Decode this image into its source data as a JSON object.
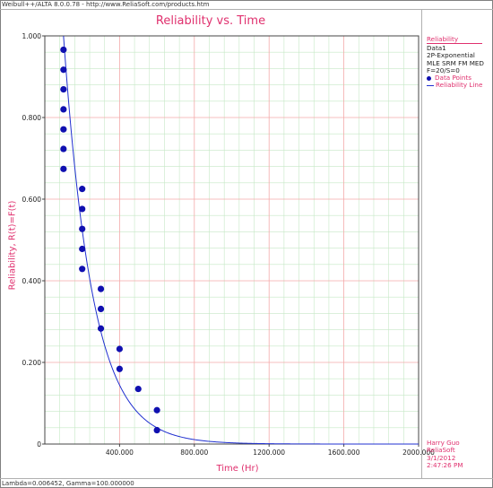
{
  "window": {
    "title": "Weibull++/ALTA 8.0.0.78 - http://www.ReliaSoft.com/products.htm",
    "footer": "Lambda=0.006452, Gamma=100.000000"
  },
  "legend": {
    "header": "Reliability",
    "dataset": "Data1",
    "model": "2P-Exponential",
    "method": "MLE SRM FM MED",
    "counts": "F=20/S=0",
    "points_label": "Data Points",
    "line_label": "Reliability Line"
  },
  "info": {
    "user": "Harry Guo",
    "company": "ReliaSoft",
    "date": "3/1/2012",
    "time": "2:47:26 PM"
  },
  "colors": {
    "title": "#e0306e",
    "grid_major": "#f4aaaa",
    "grid_minor": "#c6e8c6",
    "points": "#1010b0",
    "line": "#2030d0"
  },
  "chart_data": {
    "type": "scatter",
    "title": "Reliability vs. Time",
    "xlabel": "Time (Hr)",
    "ylabel": "Reliability, R(t)=F(t)",
    "xlim": [
      0,
      2000
    ],
    "ylim": [
      0,
      1
    ],
    "x_ticks": [
      "400.000",
      "800.000",
      "1200.000",
      "1600.000",
      "2000.000"
    ],
    "y_ticks": [
      "0",
      "0.200",
      "0.400",
      "0.600",
      "0.800",
      "1.000"
    ],
    "grid": true,
    "legend_position": "right",
    "series": [
      {
        "name": "Data Points",
        "type": "scatter",
        "x": [
          100,
          100,
          100,
          100,
          100,
          100,
          100,
          200,
          200,
          200,
          200,
          200,
          300,
          300,
          300,
          400,
          400,
          500,
          600,
          600
        ],
        "y": [
          0.966,
          0.917,
          0.869,
          0.82,
          0.771,
          0.723,
          0.674,
          0.625,
          0.576,
          0.527,
          0.478,
          0.429,
          0.38,
          0.331,
          0.283,
          0.233,
          0.184,
          0.135,
          0.083,
          0.034
        ]
      },
      {
        "name": "Reliability Line",
        "type": "line",
        "model": "exponential",
        "lambda": 0.006452,
        "gamma": 100
      }
    ]
  }
}
